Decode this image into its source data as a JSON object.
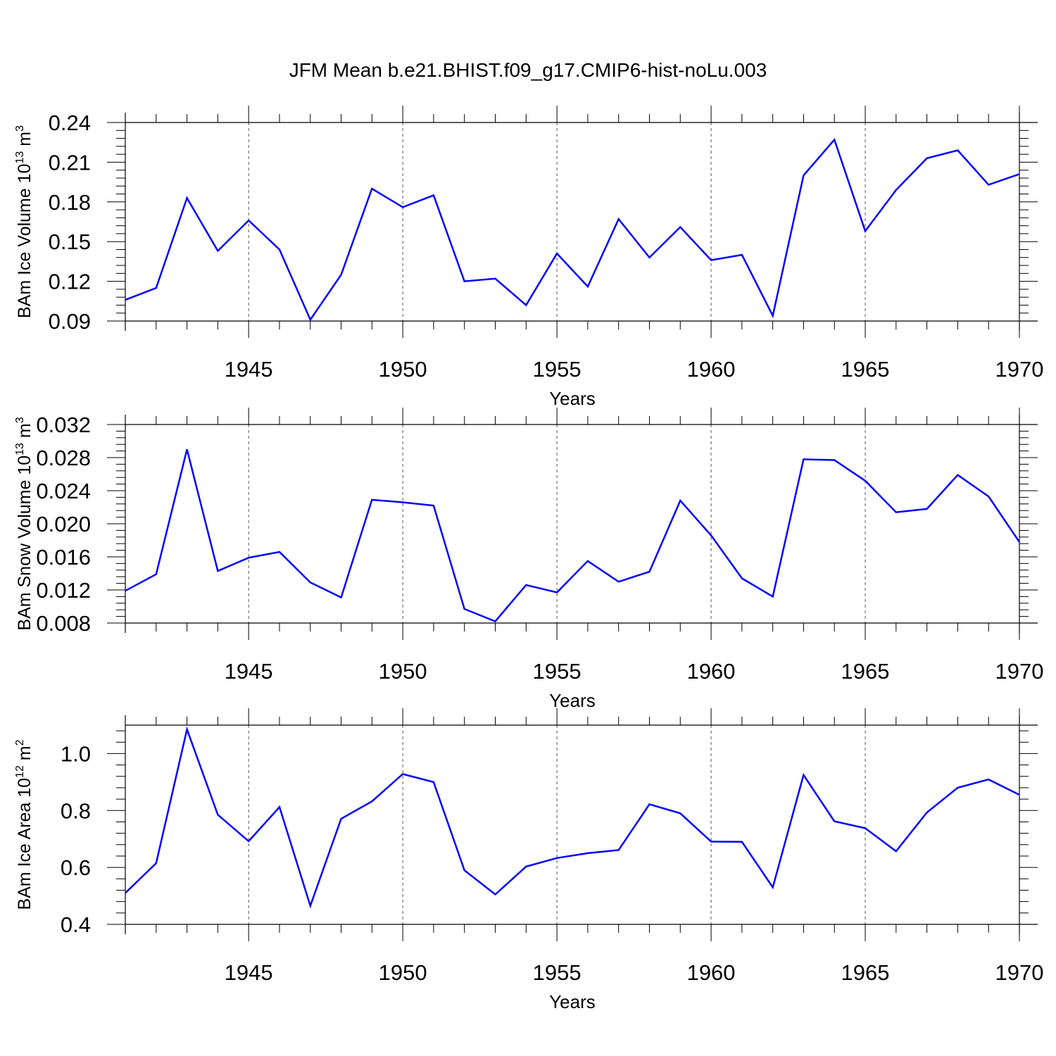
{
  "title": "JFM Mean b.e21.BHIST.f09_g17.CMIP6-hist-noLu.003",
  "colors": {
    "series": "#0000ff",
    "axis": "#000000",
    "grid": "#555555"
  },
  "chart_data": [
    {
      "type": "line",
      "ylabel_parts": [
        "BAm Ice Volume 10",
        "13",
        " m",
        "3"
      ],
      "xlabel": "Years",
      "xlim": [
        1941,
        1970
      ],
      "ylim": [
        0.09,
        0.24
      ],
      "x_ticks": [
        "1945",
        "1950",
        "1955",
        "1960",
        "1965",
        "1970"
      ],
      "y_ticks": [
        "0.09",
        "0.12",
        "0.15",
        "0.18",
        "0.21",
        "0.24"
      ],
      "x": [
        1941,
        1942,
        1943,
        1944,
        1945,
        1946,
        1947,
        1948,
        1949,
        1950,
        1951,
        1952,
        1953,
        1954,
        1955,
        1956,
        1957,
        1958,
        1959,
        1960,
        1961,
        1962,
        1963,
        1964,
        1965,
        1966,
        1967,
        1968,
        1969,
        1970
      ],
      "values": [
        0.106,
        0.115,
        0.183,
        0.143,
        0.166,
        0.144,
        0.091,
        0.125,
        0.19,
        0.176,
        0.185,
        0.12,
        0.122,
        0.102,
        0.141,
        0.116,
        0.167,
        0.138,
        0.161,
        0.136,
        0.14,
        0.094,
        0.2,
        0.227,
        0.158,
        0.189,
        0.213,
        0.219,
        0.193,
        0.201
      ]
    },
    {
      "type": "line",
      "ylabel_parts": [
        "BAm Snow Volume 10",
        "13",
        " m",
        "3"
      ],
      "xlabel": "Years",
      "xlim": [
        1941,
        1970
      ],
      "ylim": [
        0.008,
        0.032
      ],
      "x_ticks": [
        "1945",
        "1950",
        "1955",
        "1960",
        "1965",
        "1970"
      ],
      "y_ticks": [
        "0.008",
        "0.012",
        "0.016",
        "0.020",
        "0.024",
        "0.028",
        "0.032"
      ],
      "x": [
        1941,
        1942,
        1943,
        1944,
        1945,
        1946,
        1947,
        1948,
        1949,
        1950,
        1951,
        1952,
        1953,
        1954,
        1955,
        1956,
        1957,
        1958,
        1959,
        1960,
        1961,
        1962,
        1963,
        1964,
        1965,
        1966,
        1967,
        1968,
        1969,
        1970
      ],
      "values": [
        0.0119,
        0.0139,
        0.029,
        0.0143,
        0.0159,
        0.0166,
        0.0129,
        0.0111,
        0.0229,
        0.0226,
        0.0222,
        0.0097,
        0.0082,
        0.0126,
        0.0117,
        0.0155,
        0.013,
        0.0142,
        0.0228,
        0.0186,
        0.0134,
        0.0112,
        0.0278,
        0.0277,
        0.0252,
        0.0214,
        0.0218,
        0.0259,
        0.0233,
        0.0178
      ]
    },
    {
      "type": "line",
      "ylabel_parts": [
        "BAm Ice Area 10",
        "12",
        " m",
        "2"
      ],
      "xlabel": "Years",
      "xlim": [
        1941,
        1970
      ],
      "ylim": [
        0.4,
        1.1
      ],
      "x_ticks": [
        "1945",
        "1950",
        "1955",
        "1960",
        "1965",
        "1970"
      ],
      "y_ticks": [
        "0.4",
        "0.6",
        "0.8",
        "1.0"
      ],
      "x": [
        1941,
        1942,
        1943,
        1944,
        1945,
        1946,
        1947,
        1948,
        1949,
        1950,
        1951,
        1952,
        1953,
        1954,
        1955,
        1956,
        1957,
        1958,
        1959,
        1960,
        1961,
        1962,
        1963,
        1964,
        1965,
        1966,
        1967,
        1968,
        1969,
        1970
      ],
      "values": [
        0.51,
        0.615,
        1.085,
        0.785,
        0.692,
        0.812,
        0.465,
        0.771,
        0.832,
        0.928,
        0.9,
        0.59,
        0.505,
        0.603,
        0.633,
        0.65,
        0.661,
        0.822,
        0.79,
        0.691,
        0.69,
        0.53,
        0.925,
        0.762,
        0.738,
        0.657,
        0.793,
        0.88,
        0.909,
        0.855
      ]
    }
  ]
}
